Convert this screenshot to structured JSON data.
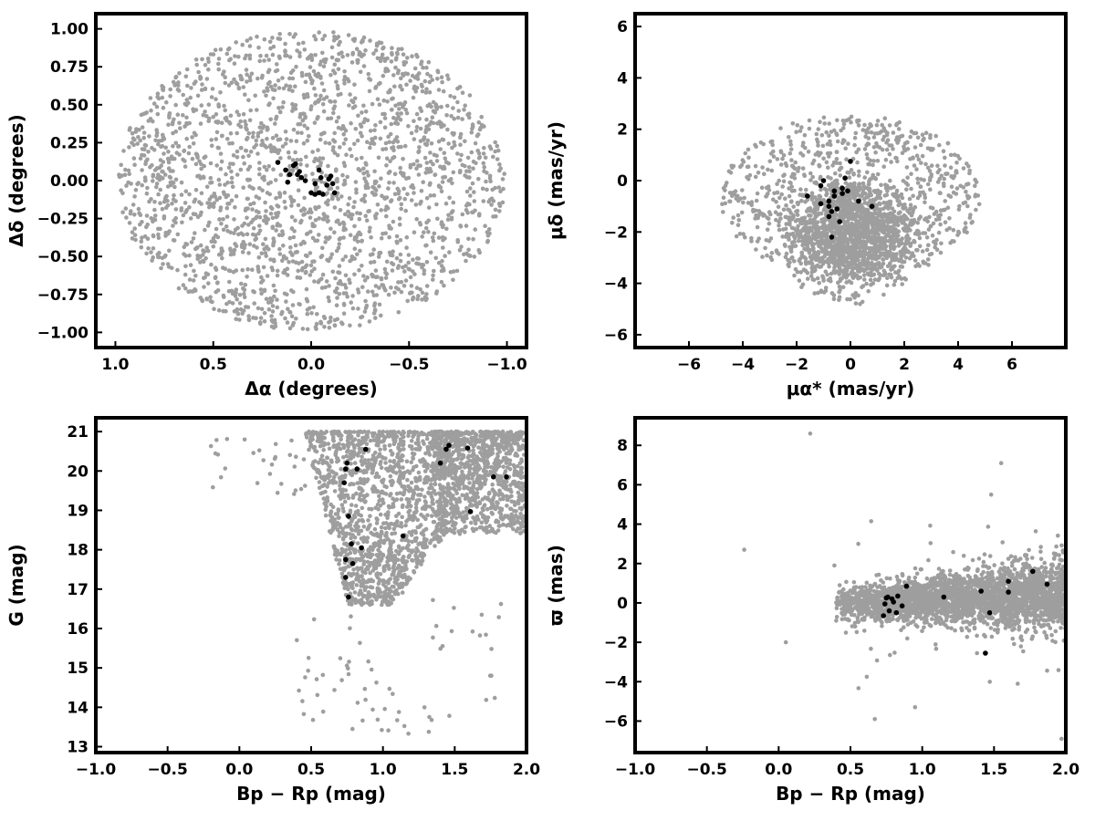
{
  "colors": {
    "field": "#9e9e9e",
    "cluster": "#000000",
    "frame": "#000000"
  },
  "chart_data": [
    {
      "type": "scatter",
      "xlabel": "Δα (degrees)",
      "ylabel": "Δδ (degrees)",
      "xlim": [
        1.1,
        -1.1
      ],
      "ylim": [
        -1.1,
        1.1
      ],
      "x_ticks": [
        1.0,
        0.5,
        0.0,
        -0.5,
        -1.0
      ],
      "x_tick_labels": [
        "1.0",
        "0.5",
        "0.0",
        "−0.5",
        "−1.0"
      ],
      "y_ticks": [
        1.0,
        0.75,
        0.5,
        0.25,
        0.0,
        -0.25,
        -0.5,
        -0.75,
        -1.0
      ],
      "y_tick_labels": [
        "1.00",
        "0.75",
        "0.50",
        "0.25",
        "0.00",
        "−0.25",
        "−0.50",
        "−0.75",
        "−1.00"
      ],
      "grid": false,
      "field_stars": {
        "color": "#9e9e9e",
        "count": 2200,
        "distribution": "uniform disk",
        "center": [
          0,
          0
        ],
        "radius": [
          1.0,
          1.0
        ]
      },
      "series": [
        {
          "color": "#000000",
          "points": [
            [
              0.17,
              0.12
            ],
            [
              0.13,
              0.07
            ],
            [
              0.11,
              0.04
            ],
            [
              0.12,
              -0.01
            ],
            [
              0.09,
              0.1
            ],
            [
              0.08,
              0.11
            ],
            [
              0.06,
              0.06
            ],
            [
              0.05,
              0.02
            ],
            [
              0.07,
              0.04
            ],
            [
              0.03,
              0.0
            ],
            [
              0.0,
              -0.08
            ],
            [
              -0.02,
              -0.09
            ],
            [
              -0.04,
              -0.08
            ],
            [
              -0.06,
              -0.09
            ],
            [
              -0.04,
              0.07
            ],
            [
              -0.05,
              0.02
            ],
            [
              -0.09,
              0.01
            ],
            [
              -0.1,
              0.03
            ],
            [
              -0.08,
              -0.03
            ],
            [
              -0.11,
              -0.02
            ],
            [
              -0.12,
              -0.08
            ],
            [
              -0.02,
              -0.02
            ]
          ]
        }
      ]
    },
    {
      "type": "scatter",
      "xlabel": "μα* (mas/yr)",
      "ylabel": "μδ (mas/yr)",
      "xlim": [
        -8,
        8
      ],
      "ylim": [
        -6.5,
        6.5
      ],
      "x_ticks": [
        -6,
        -4,
        -2,
        0,
        2,
        4,
        6
      ],
      "x_tick_labels": [
        "−6",
        "−4",
        "−2",
        "0",
        "2",
        "4",
        "6"
      ],
      "y_ticks": [
        6,
        4,
        2,
        0,
        -2,
        -4,
        -6
      ],
      "y_tick_labels": [
        "6",
        "4",
        "2",
        "0",
        "−2",
        "−4",
        "−6"
      ],
      "grid": false,
      "field_stars": {
        "color": "#9e9e9e",
        "count": 2200,
        "distribution": "cloud",
        "center": [
          0,
          -2
        ],
        "radius": [
          4.8,
          2.9
        ]
      },
      "series": [
        {
          "color": "#000000",
          "points": [
            [
              -1.6,
              -0.6
            ],
            [
              -1.1,
              -0.2
            ],
            [
              -1.0,
              0.0
            ],
            [
              -1.1,
              -0.9
            ],
            [
              -0.8,
              -0.8
            ],
            [
              -0.8,
              -1.0
            ],
            [
              -0.7,
              -1.2
            ],
            [
              -0.8,
              -1.4
            ],
            [
              -0.6,
              -0.4
            ],
            [
              -0.6,
              -0.6
            ],
            [
              -0.5,
              -1.1
            ],
            [
              -0.4,
              -1.6
            ],
            [
              -0.7,
              -2.2
            ],
            [
              -0.3,
              -0.5
            ],
            [
              -0.3,
              -0.3
            ],
            [
              -0.2,
              0.1
            ],
            [
              0.0,
              0.75
            ],
            [
              0.3,
              -0.8
            ],
            [
              0.8,
              -1.0
            ],
            [
              -0.1,
              -0.4
            ]
          ]
        }
      ]
    },
    {
      "type": "scatter",
      "xlabel": "Bp − Rp (mag)",
      "ylabel": "G (mag)",
      "xlim": [
        -1.0,
        2.0
      ],
      "ylim": [
        12.85,
        21.35
      ],
      "y_inverted": false,
      "x_ticks": [
        -1.0,
        -0.5,
        0.0,
        0.5,
        1.0,
        1.5,
        2.0
      ],
      "x_tick_labels": [
        "−1.0",
        "−0.5",
        "0.0",
        "0.5",
        "1.0",
        "1.5",
        "2.0"
      ],
      "y_ticks": [
        21,
        20,
        19,
        18,
        17,
        16,
        15,
        14,
        13
      ],
      "y_tick_labels": [
        "21",
        "20",
        "19",
        "18",
        "17",
        "16",
        "15",
        "14",
        "13"
      ],
      "grid": false,
      "field_stars": {
        "color": "#9e9e9e",
        "count": 3000,
        "distribution": "color-magnitude diagram",
        "center": [
          1.2,
          19.8
        ],
        "radius": [
          0.8,
          1.2
        ]
      },
      "series": [
        {
          "color": "#000000",
          "points": [
            [
              0.73,
              19.7
            ],
            [
              0.74,
              20.05
            ],
            [
              0.75,
              20.2
            ],
            [
              0.82,
              20.05
            ],
            [
              0.88,
              20.55
            ],
            [
              0.76,
              18.85
            ],
            [
              0.78,
              18.15
            ],
            [
              0.85,
              18.05
            ],
            [
              0.74,
              17.75
            ],
            [
              0.79,
              17.65
            ],
            [
              0.74,
              17.3
            ],
            [
              0.76,
              16.8
            ],
            [
              1.14,
              18.35
            ],
            [
              1.4,
              20.2
            ],
            [
              1.44,
              20.55
            ],
            [
              1.46,
              20.65
            ],
            [
              1.59,
              20.58
            ],
            [
              1.61,
              18.97
            ],
            [
              1.77,
              19.85
            ],
            [
              1.86,
              19.85
            ]
          ]
        }
      ]
    },
    {
      "type": "scatter",
      "xlabel": "Bp − Rp (mag)",
      "ylabel": "ϖ (mas)",
      "xlim": [
        -1.0,
        2.0
      ],
      "ylim": [
        -7.6,
        9.4
      ],
      "x_ticks": [
        -1.0,
        -0.5,
        0.0,
        0.5,
        1.0,
        1.5,
        2.0
      ],
      "x_tick_labels": [
        "−1.0",
        "−0.5",
        "0.0",
        "0.5",
        "1.0",
        "1.5",
        "2.0"
      ],
      "y_ticks": [
        8,
        6,
        4,
        2,
        0,
        -2,
        -4,
        -6
      ],
      "y_tick_labels": [
        "8",
        "6",
        "4",
        "2",
        "0",
        "−2",
        "−4",
        "−6"
      ],
      "grid": false,
      "field_stars": {
        "color": "#9e9e9e",
        "count": 3000,
        "distribution": "parallax band",
        "center": [
          1.2,
          0.2
        ],
        "radius": [
          0.8,
          0.9
        ]
      },
      "series": [
        {
          "color": "#000000",
          "points": [
            [
              0.73,
              -0.65
            ],
            [
              0.74,
              -0.05
            ],
            [
              0.75,
              0.25
            ],
            [
              0.76,
              0.3
            ],
            [
              0.77,
              -0.4
            ],
            [
              0.79,
              0.2
            ],
            [
              0.8,
              0.05
            ],
            [
              0.82,
              -0.5
            ],
            [
              0.83,
              0.35
            ],
            [
              0.86,
              -0.15
            ],
            [
              0.89,
              0.85
            ],
            [
              1.15,
              0.3
            ],
            [
              1.41,
              0.6
            ],
            [
              1.44,
              -2.55
            ],
            [
              1.47,
              -0.5
            ],
            [
              1.6,
              1.1
            ],
            [
              1.6,
              0.55
            ],
            [
              1.77,
              1.6
            ],
            [
              1.87,
              0.95
            ]
          ]
        }
      ]
    }
  ]
}
